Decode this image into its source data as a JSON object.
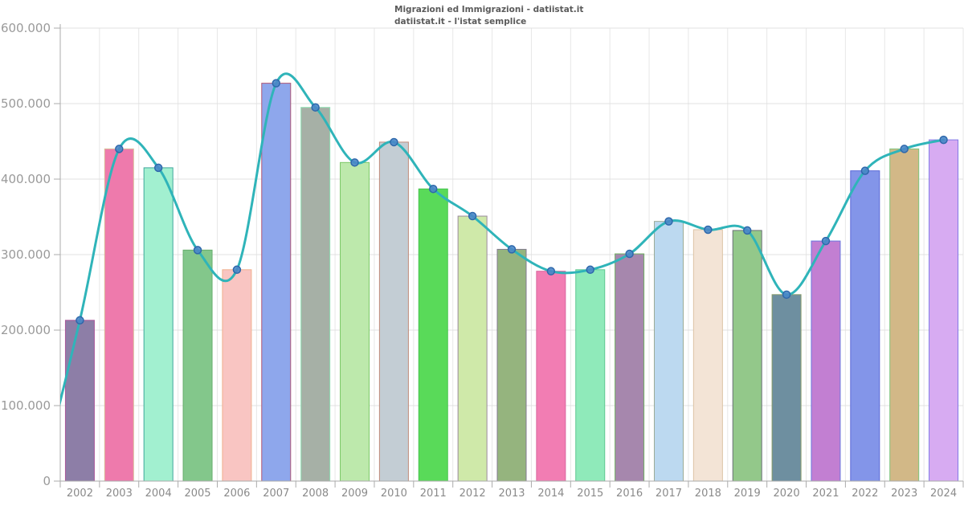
{
  "header": {
    "title": "Migrazioni ed Immigrazioni - datiistat.it",
    "subtitle": "datiistat.it - l'istat semplice",
    "color": "#5a5a5a"
  },
  "chart_data": {
    "type": "bar",
    "line_overlay": true,
    "title": "Migrazioni ed Immigrazioni - datiistat.it",
    "subtitle": "datiistat.it - l'istat semplice",
    "categories": [
      "2002",
      "2003",
      "2004",
      "2005",
      "2006",
      "2007",
      "2008",
      "2009",
      "2010",
      "2011",
      "2012",
      "2013",
      "2014",
      "2015",
      "2016",
      "2017",
      "2018",
      "2019",
      "2020",
      "2021",
      "2022",
      "2023",
      "2024"
    ],
    "values": [
      213000,
      440000,
      415000,
      306000,
      280000,
      527000,
      495000,
      422000,
      449000,
      387000,
      351000,
      307000,
      278000,
      280000,
      301000,
      344000,
      333000,
      332000,
      247000,
      318000,
      411000,
      440000,
      452000
    ],
    "bar_colors": [
      "#8d7ea7",
      "#ee7aac",
      "#a2f0d0",
      "#83c78b",
      "#f9c5c2",
      "#8ea7ec",
      "#a6b0a6",
      "#bde9ac",
      "#c3cdd4",
      "#59da59",
      "#cfe9a9",
      "#95b47e",
      "#f27db3",
      "#8feaba",
      "#a687ad",
      "#bcd9f0",
      "#f3e4d6",
      "#93c88a",
      "#6e8fa0",
      "#c27fd2",
      "#8395e9",
      "#d2b887",
      "#d7abf2"
    ],
    "bar_border_colors": [
      "#aa5a9c",
      "#d8bd97",
      "#3fa89c",
      "#68ae6e",
      "#f0b18e",
      "#b05573",
      "#8fe0b4",
      "#7cc968",
      "#c08a79",
      "#46c44e",
      "#9a8a9c",
      "#837a90",
      "#d9679e",
      "#5ec791",
      "#6fae62",
      "#9cab97",
      "#dcc3a5",
      "#6b7078",
      "#879a68",
      "#6a78e0",
      "#5a68d8",
      "#7cc47c",
      "#8079e6"
    ],
    "line": {
      "color": "#2fb4b9",
      "width": 3,
      "marker_fill": "#4a86c8",
      "marker_stroke": "#2e68ab",
      "marker_radius": 4.5
    },
    "ylim": [
      0,
      600000
    ],
    "ytick_values": [
      0,
      100000,
      200000,
      300000,
      400000,
      500000,
      600000
    ],
    "ytick_labels": [
      "0",
      "100.000",
      "200.000",
      "300.000",
      "400.000",
      "500.000",
      "600.000"
    ],
    "grid": true,
    "legend": "none",
    "axis_colors": {
      "axis_line": "#ababab",
      "grid_h": "#e0e0e0",
      "grid_v": "#e7e7e7",
      "ylabel": "#9a9a9a",
      "xlabel": "#8a8a8a"
    }
  }
}
